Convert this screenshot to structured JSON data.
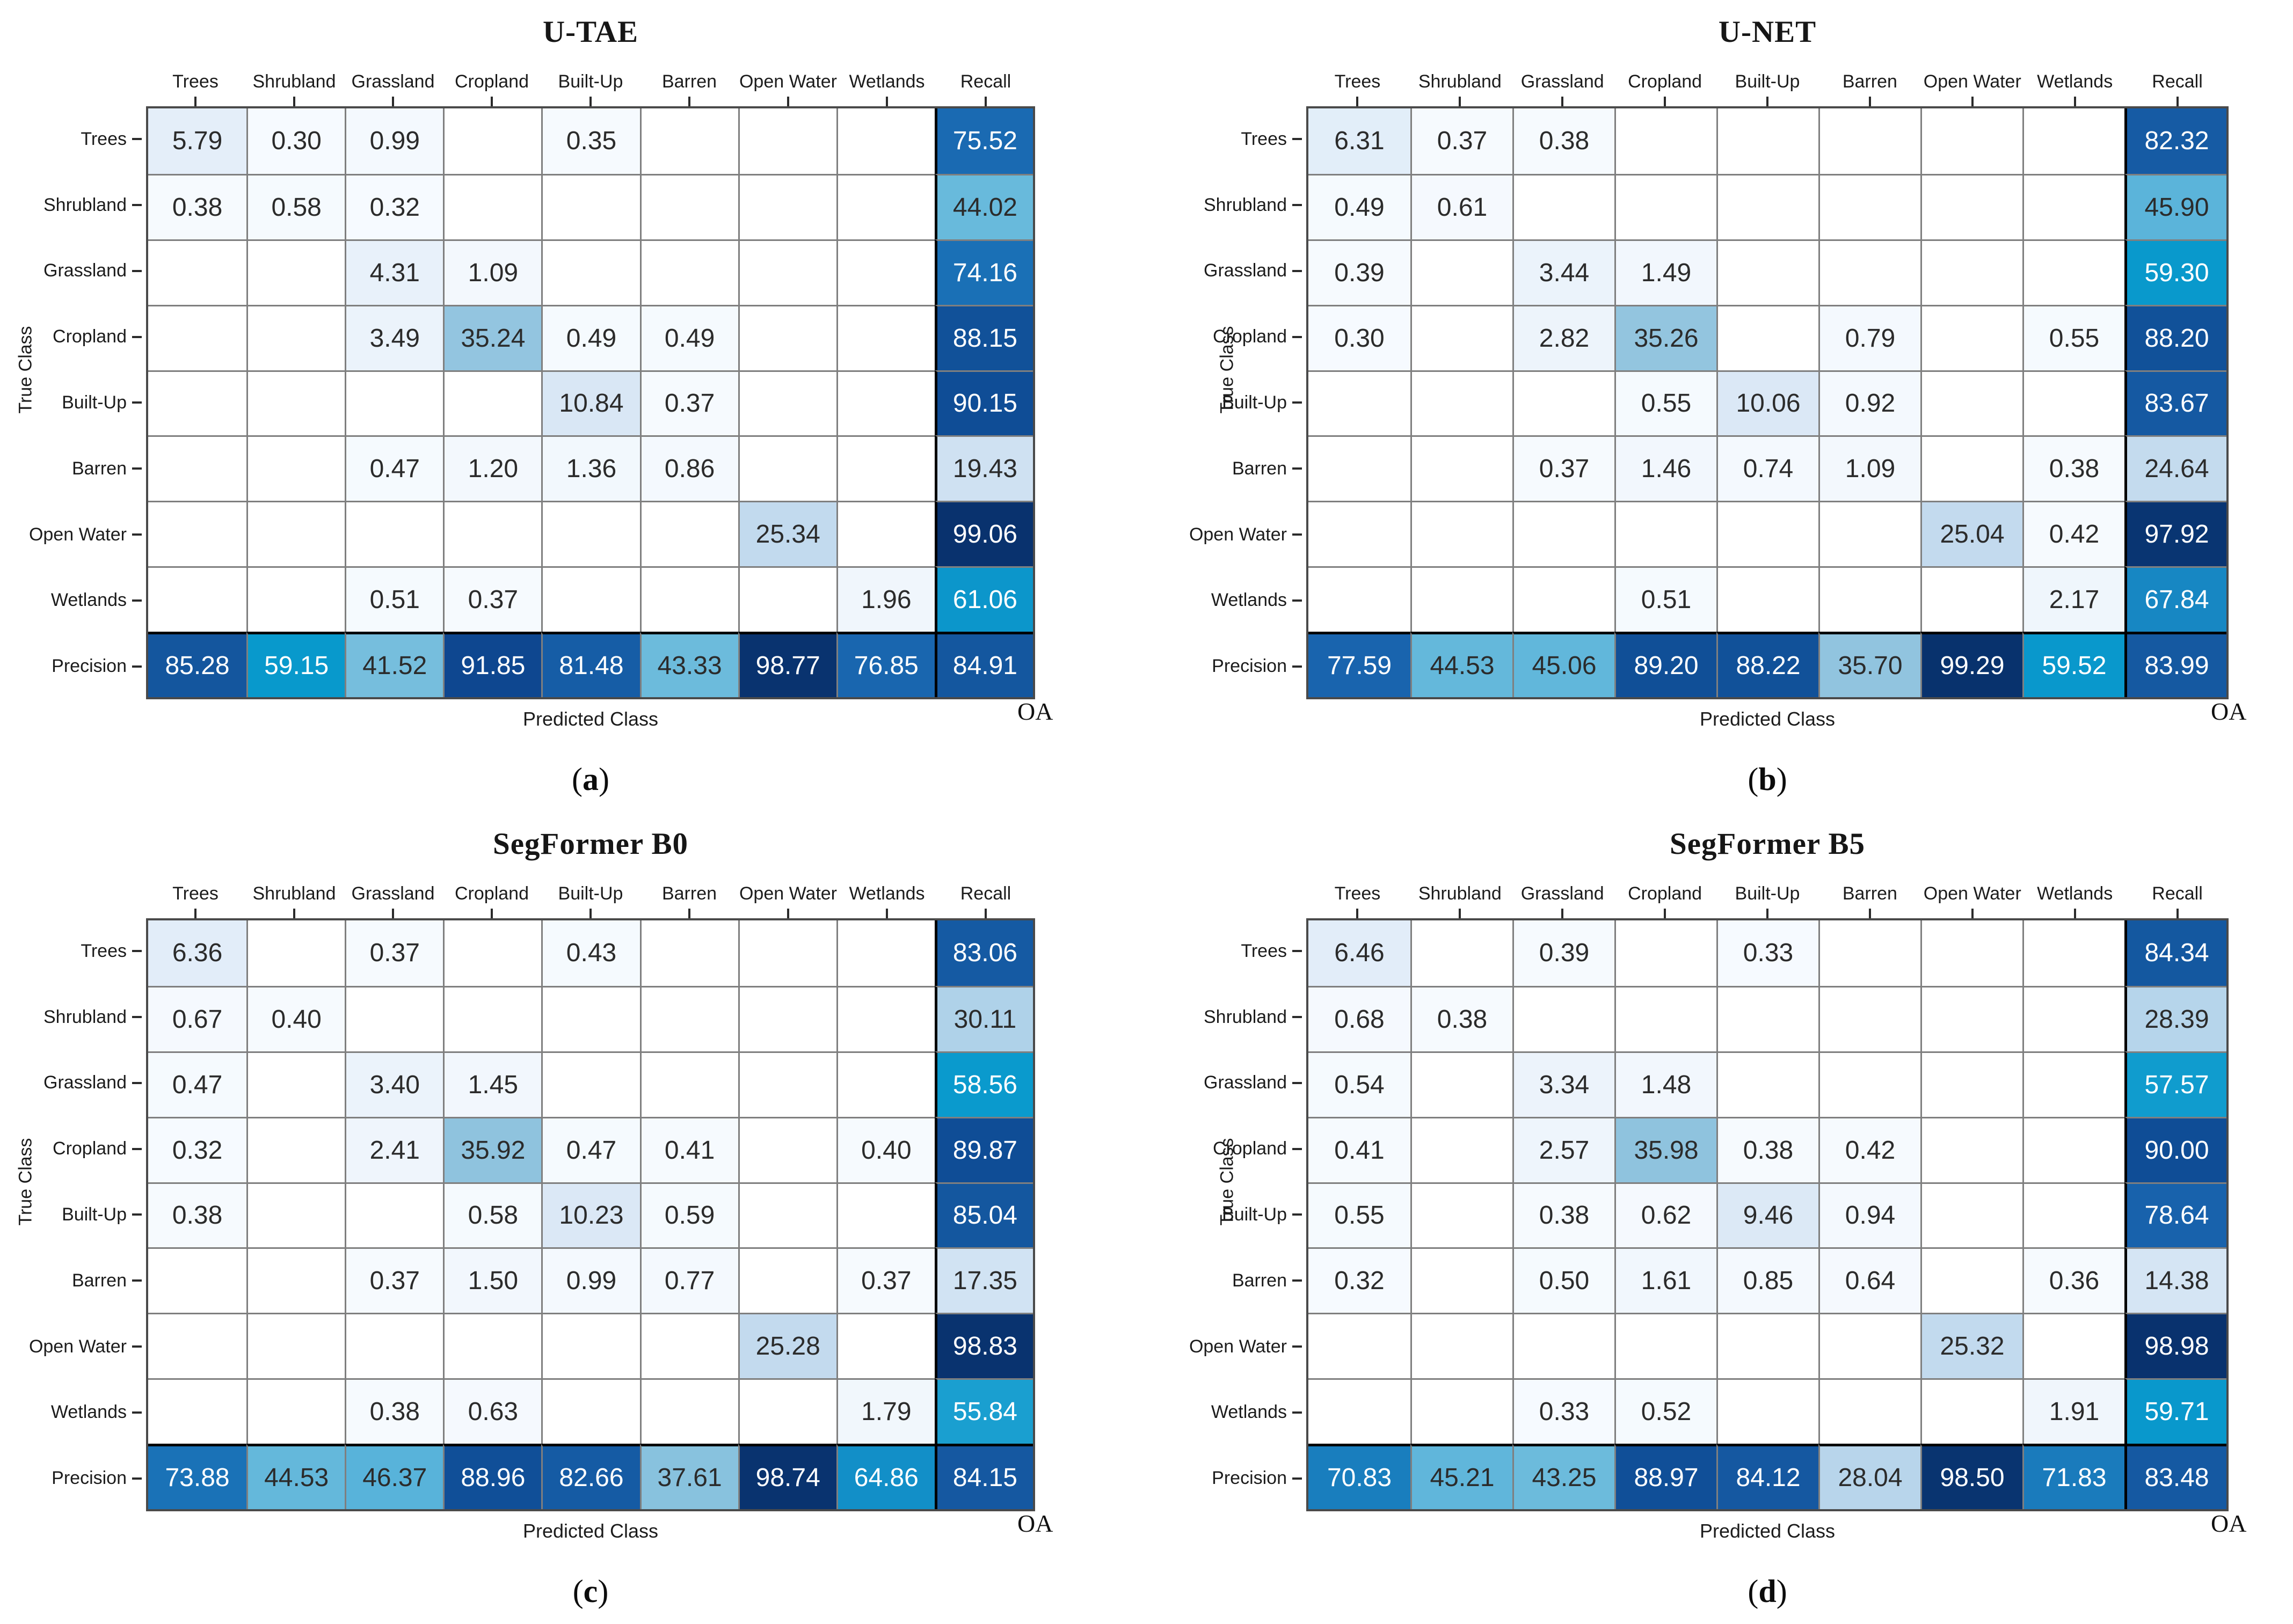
{
  "chart_data": [
    {
      "type": "heatmap",
      "title": "U-TAE",
      "caption": "(a)",
      "xlabel": "Predicted Class",
      "ylabel": "True Class",
      "corner_label": "OA",
      "x_categories": [
        "Trees",
        "Shrubland",
        "Grassland",
        "Cropland",
        "Built-Up",
        "Barren",
        "Open Water",
        "Wetlands",
        "Recall"
      ],
      "y_categories": [
        "Trees",
        "Shrubland",
        "Grassland",
        "Cropland",
        "Built-Up",
        "Barren",
        "Open Water",
        "Wetlands",
        "Precision"
      ],
      "values": [
        [
          5.79,
          0.3,
          0.99,
          null,
          0.35,
          null,
          null,
          null,
          75.52
        ],
        [
          0.38,
          0.58,
          0.32,
          null,
          null,
          null,
          null,
          null,
          44.02
        ],
        [
          null,
          null,
          4.31,
          1.09,
          null,
          null,
          null,
          null,
          74.16
        ],
        [
          null,
          null,
          3.49,
          35.24,
          0.49,
          0.49,
          null,
          null,
          88.15
        ],
        [
          null,
          null,
          null,
          null,
          10.84,
          0.37,
          null,
          null,
          90.15
        ],
        [
          null,
          null,
          0.47,
          1.2,
          1.36,
          0.86,
          null,
          null,
          19.43
        ],
        [
          null,
          null,
          null,
          null,
          null,
          null,
          25.34,
          null,
          99.06
        ],
        [
          null,
          null,
          0.51,
          0.37,
          null,
          null,
          null,
          1.96,
          61.06
        ],
        [
          85.28,
          59.15,
          41.52,
          91.85,
          81.48,
          43.33,
          98.77,
          76.85,
          84.91
        ]
      ]
    },
    {
      "type": "heatmap",
      "title": "U-NET",
      "caption": "(b)",
      "xlabel": "Predicted Class",
      "ylabel": "True Class",
      "corner_label": "OA",
      "x_categories": [
        "Trees",
        "Shrubland",
        "Grassland",
        "Cropland",
        "Built-Up",
        "Barren",
        "Open Water",
        "Wetlands",
        "Recall"
      ],
      "y_categories": [
        "Trees",
        "Shrubland",
        "Grassland",
        "Cropland",
        "Built-Up",
        "Barren",
        "Open Water",
        "Wetlands",
        "Precision"
      ],
      "values": [
        [
          6.31,
          0.37,
          0.38,
          null,
          null,
          null,
          null,
          null,
          82.32
        ],
        [
          0.49,
          0.61,
          null,
          null,
          null,
          null,
          null,
          null,
          45.9
        ],
        [
          0.39,
          null,
          3.44,
          1.49,
          null,
          null,
          null,
          null,
          59.3
        ],
        [
          0.3,
          null,
          2.82,
          35.26,
          null,
          0.79,
          null,
          0.55,
          88.2
        ],
        [
          null,
          null,
          null,
          0.55,
          10.06,
          0.92,
          null,
          null,
          83.67
        ],
        [
          null,
          null,
          0.37,
          1.46,
          0.74,
          1.09,
          null,
          0.38,
          24.64
        ],
        [
          null,
          null,
          null,
          null,
          null,
          null,
          25.04,
          0.42,
          97.92
        ],
        [
          null,
          null,
          null,
          0.51,
          null,
          null,
          null,
          2.17,
          67.84
        ],
        [
          77.59,
          44.53,
          45.06,
          89.2,
          88.22,
          35.7,
          99.29,
          59.52,
          83.99
        ]
      ]
    },
    {
      "type": "heatmap",
      "title": "SegFormer B0",
      "caption": "(c)",
      "xlabel": "Predicted Class",
      "ylabel": "True Class",
      "corner_label": "OA",
      "x_categories": [
        "Trees",
        "Shrubland",
        "Grassland",
        "Cropland",
        "Built-Up",
        "Barren",
        "Open Water",
        "Wetlands",
        "Recall"
      ],
      "y_categories": [
        "Trees",
        "Shrubland",
        "Grassland",
        "Cropland",
        "Built-Up",
        "Barren",
        "Open Water",
        "Wetlands",
        "Precision"
      ],
      "values": [
        [
          6.36,
          null,
          0.37,
          null,
          0.43,
          null,
          null,
          null,
          83.06
        ],
        [
          0.67,
          0.4,
          null,
          null,
          null,
          null,
          null,
          null,
          30.11
        ],
        [
          0.47,
          null,
          3.4,
          1.45,
          null,
          null,
          null,
          null,
          58.56
        ],
        [
          0.32,
          null,
          2.41,
          35.92,
          0.47,
          0.41,
          null,
          0.4,
          89.87
        ],
        [
          0.38,
          null,
          null,
          0.58,
          10.23,
          0.59,
          null,
          null,
          85.04
        ],
        [
          null,
          null,
          0.37,
          1.5,
          0.99,
          0.77,
          null,
          0.37,
          17.35
        ],
        [
          null,
          null,
          null,
          null,
          null,
          null,
          25.28,
          null,
          98.83
        ],
        [
          null,
          null,
          0.38,
          0.63,
          null,
          null,
          null,
          1.79,
          55.84
        ],
        [
          73.88,
          44.53,
          46.37,
          88.96,
          82.66,
          37.61,
          98.74,
          64.86,
          84.15
        ]
      ]
    },
    {
      "type": "heatmap",
      "title": "SegFormer B5",
      "caption": "(d)",
      "xlabel": "Predicted Class",
      "ylabel": "True Class",
      "corner_label": "OA",
      "x_categories": [
        "Trees",
        "Shrubland",
        "Grassland",
        "Cropland",
        "Built-Up",
        "Barren",
        "Open Water",
        "Wetlands",
        "Recall"
      ],
      "y_categories": [
        "Trees",
        "Shrubland",
        "Grassland",
        "Cropland",
        "Built-Up",
        "Barren",
        "Open Water",
        "Wetlands",
        "Precision"
      ],
      "values": [
        [
          6.46,
          null,
          0.39,
          null,
          0.33,
          null,
          null,
          null,
          84.34
        ],
        [
          0.68,
          0.38,
          null,
          null,
          null,
          null,
          null,
          null,
          28.39
        ],
        [
          0.54,
          null,
          3.34,
          1.48,
          null,
          null,
          null,
          null,
          57.57
        ],
        [
          0.41,
          null,
          2.57,
          35.98,
          0.38,
          0.42,
          null,
          null,
          90.0
        ],
        [
          0.55,
          null,
          0.38,
          0.62,
          9.46,
          0.94,
          null,
          null,
          78.64
        ],
        [
          0.32,
          null,
          0.5,
          1.61,
          0.85,
          0.64,
          null,
          0.36,
          14.38
        ],
        [
          null,
          null,
          null,
          null,
          null,
          null,
          25.32,
          null,
          98.98
        ],
        [
          null,
          null,
          0.33,
          0.52,
          null,
          null,
          null,
          1.91,
          59.71
        ],
        [
          70.83,
          45.21,
          43.25,
          88.97,
          84.12,
          28.04,
          98.5,
          71.83,
          83.48
        ]
      ]
    }
  ],
  "style": {
    "empty_cell_color": "#ffffff",
    "value_text_dark": "#2b2b2b",
    "value_text_light": "#ffffff",
    "white_text_threshold": 50,
    "colormap_anchors": [
      [
        0,
        "#f7fbff"
      ],
      [
        2,
        "#f0f6fc"
      ],
      [
        6,
        "#e3eef9"
      ],
      [
        11,
        "#d9e7f5"
      ],
      [
        16,
        "#d3e4f3"
      ],
      [
        20,
        "#cee1f2"
      ],
      [
        26,
        "#c1d9ed"
      ],
      [
        31,
        "#abd0e8"
      ],
      [
        36,
        "#8fc3de"
      ],
      [
        40,
        "#7ec0dd"
      ],
      [
        44,
        "#68badc"
      ],
      [
        47,
        "#54b1d9"
      ],
      [
        53,
        "#2aa5d3"
      ],
      [
        59,
        "#0899cc"
      ],
      [
        63,
        "#0f94cb"
      ],
      [
        68,
        "#1787c3"
      ],
      [
        72,
        "#1a7abc"
      ],
      [
        76,
        "#1a68b1"
      ],
      [
        80,
        "#175fa9"
      ],
      [
        85,
        "#14579f"
      ],
      [
        90,
        "#0f4d96"
      ],
      [
        94,
        "#0c4189"
      ],
      [
        97,
        "#0a3775"
      ],
      [
        100,
        "#08306b"
      ]
    ]
  }
}
